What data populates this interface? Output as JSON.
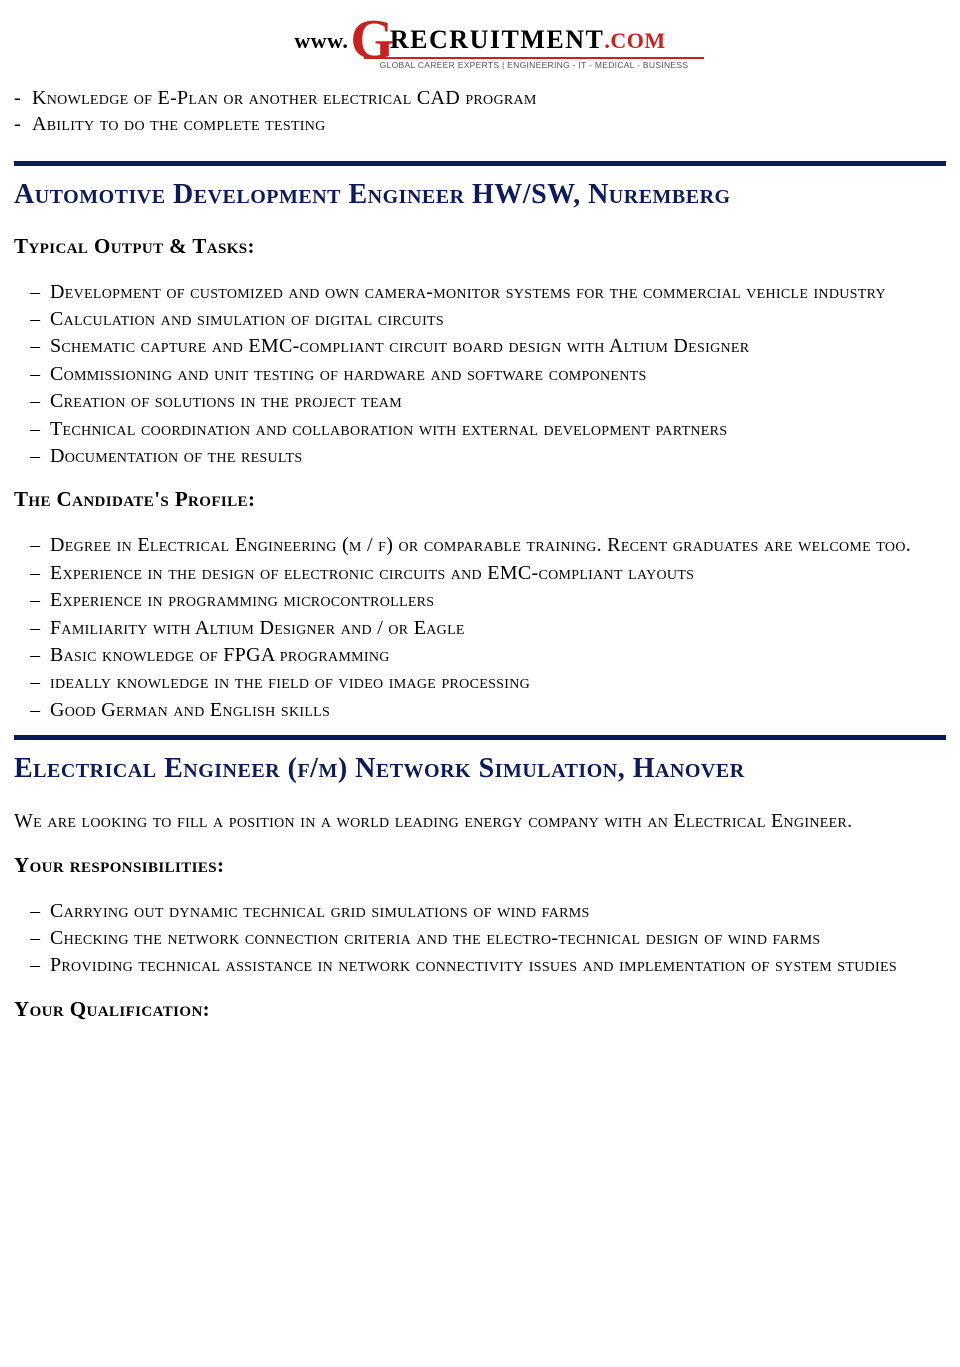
{
  "logo": {
    "www": "www.",
    "g": "G",
    "rec": "RECRUITMENT",
    "com": ".COM",
    "tagline": "GLOBAL CAREER EXPERTS | ENGINEERING - IT - MEDICAL - BUSINESS",
    "brand_red": "#cc1f1f",
    "text_black": "#000000"
  },
  "intro_items": [
    "Knowledge of E-Plan or another electrical CAD program",
    "Ability to do the complete testing"
  ],
  "divider_color": "#0d1b5c",
  "heading_color": "#0d1b5c",
  "jobs": [
    {
      "title": "Automotive Development Engineer HW/SW, Nuremberg",
      "intro": "",
      "sections": [
        {
          "heading": "Typical Output & Tasks:",
          "items": [
            "Development of customized and own camera-monitor systems for the commercial vehicle industry",
            "Calculation and simulation of digital circuits",
            "Schematic capture and EMC-compliant circuit board design with Altium Designer",
            "Commissioning and unit testing of hardware and software components",
            "Creation of solutions in the project team",
            "Technical coordination and collaboration with external development partners",
            "Documentation of the results"
          ]
        },
        {
          "heading": "The Candidate's Profile:",
          "items": [
            "Degree in Electrical Engineering (m / f) or comparable training. Recent graduates are welcome too.",
            "Experience in the design of electronic circuits and EMC-compliant layouts",
            "Experience in programming microcontrollers",
            "Familiarity with Altium Designer and / or Eagle",
            "Basic knowledge of FPGA programming",
            "ideally knowledge in the field of video image processing",
            "Good German and English skills"
          ]
        }
      ]
    },
    {
      "title": "Electrical Engineer (f/m) Network Simulation, Hanover",
      "intro": "We are looking to fill a position in a world leading energy company with an Electrical Engineer.",
      "sections": [
        {
          "heading": "Your responsibilities:",
          "items": [
            "Carrying out dynamic technical grid simulations of wind farms",
            "Checking the network connection criteria and the electro-technical design of wind farms",
            "Providing technical assistance in network connectivity issues and implementation of system studies"
          ]
        },
        {
          "heading": "Your Qualification:",
          "items": []
        }
      ]
    }
  ]
}
